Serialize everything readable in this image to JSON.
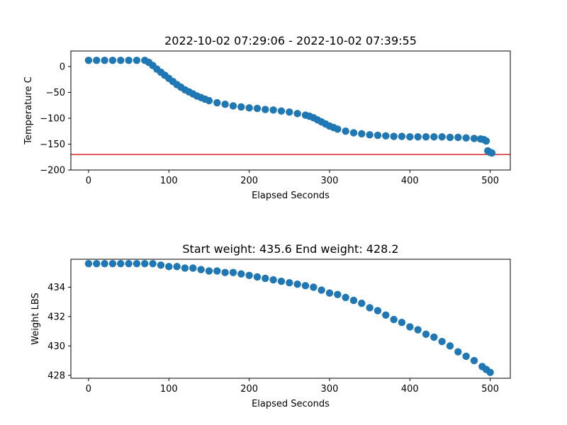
{
  "chart_data": [
    {
      "type": "scatter",
      "title": "2022-10-02 07:29:06 - 2022-10-02 07:39:55",
      "xlabel": "Elapsed Seconds",
      "ylabel": "Temperature C",
      "xlim": [
        -22,
        525
      ],
      "ylim": [
        -200,
        30
      ],
      "xticks": [
        0,
        100,
        200,
        300,
        400,
        500
      ],
      "yticks": [
        0,
        -50,
        -100,
        -150,
        -200
      ],
      "tick_labels_x": [
        "0",
        "100",
        "200",
        "300",
        "400",
        "500"
      ],
      "tick_labels_y": [
        "0",
        "−50",
        "−100",
        "−150",
        "−200"
      ],
      "marker_color": "#1f77b4",
      "reference_line": {
        "y": -170,
        "color": "#d62728"
      },
      "series": [
        {
          "points": [
            [
              0,
              12
            ],
            [
              10,
              12
            ],
            [
              20,
              12
            ],
            [
              30,
              12
            ],
            [
              40,
              12
            ],
            [
              50,
              12
            ],
            [
              60,
              12
            ],
            [
              70,
              12
            ],
            [
              75,
              8
            ],
            [
              80,
              2
            ],
            [
              85,
              -5
            ],
            [
              90,
              -11
            ],
            [
              95,
              -17
            ],
            [
              100,
              -23
            ],
            [
              105,
              -29
            ],
            [
              110,
              -35
            ],
            [
              115,
              -40
            ],
            [
              120,
              -45
            ],
            [
              125,
              -49
            ],
            [
              130,
              -53
            ],
            [
              135,
              -57
            ],
            [
              140,
              -60
            ],
            [
              145,
              -63
            ],
            [
              150,
              -66
            ],
            [
              160,
              -70
            ],
            [
              170,
              -73
            ],
            [
              180,
              -76
            ],
            [
              190,
              -78
            ],
            [
              200,
              -80
            ],
            [
              210,
              -81
            ],
            [
              220,
              -83
            ],
            [
              230,
              -84
            ],
            [
              240,
              -86
            ],
            [
              250,
              -88
            ],
            [
              260,
              -91
            ],
            [
              270,
              -94
            ],
            [
              275,
              -96
            ],
            [
              280,
              -99
            ],
            [
              285,
              -103
            ],
            [
              290,
              -107
            ],
            [
              295,
              -111
            ],
            [
              300,
              -115
            ],
            [
              305,
              -118
            ],
            [
              310,
              -121
            ],
            [
              320,
              -125
            ],
            [
              330,
              -128
            ],
            [
              340,
              -130
            ],
            [
              350,
              -132
            ],
            [
              360,
              -133
            ],
            [
              370,
              -134
            ],
            [
              380,
              -135
            ],
            [
              390,
              -135
            ],
            [
              400,
              -136
            ],
            [
              410,
              -136
            ],
            [
              420,
              -136
            ],
            [
              430,
              -136
            ],
            [
              440,
              -136
            ],
            [
              450,
              -137
            ],
            [
              460,
              -137
            ],
            [
              470,
              -138
            ],
            [
              480,
              -139
            ],
            [
              488,
              -140
            ],
            [
              492,
              -141
            ],
            [
              495,
              -144
            ],
            [
              497,
              -163
            ],
            [
              500,
              -166
            ],
            [
              502,
              -167
            ]
          ]
        }
      ]
    },
    {
      "type": "scatter",
      "title": "Start weight: 435.6 End weight: 428.2",
      "xlabel": "Elapsed Seconds",
      "ylabel": "Weight LBS",
      "xlim": [
        -22,
        525
      ],
      "ylim": [
        427.8,
        435.9
      ],
      "xticks": [
        0,
        100,
        200,
        300,
        400,
        500
      ],
      "yticks": [
        428,
        430,
        432,
        434
      ],
      "tick_labels_x": [
        "0",
        "100",
        "200",
        "300",
        "400",
        "500"
      ],
      "tick_labels_y": [
        "428",
        "430",
        "432",
        "434"
      ],
      "marker_color": "#1f77b4",
      "series": [
        {
          "points": [
            [
              0,
              435.6
            ],
            [
              10,
              435.6
            ],
            [
              20,
              435.6
            ],
            [
              30,
              435.6
            ],
            [
              40,
              435.6
            ],
            [
              50,
              435.6
            ],
            [
              60,
              435.6
            ],
            [
              70,
              435.6
            ],
            [
              80,
              435.6
            ],
            [
              90,
              435.5
            ],
            [
              100,
              435.4
            ],
            [
              110,
              435.4
            ],
            [
              120,
              435.3
            ],
            [
              130,
              435.3
            ],
            [
              140,
              435.2
            ],
            [
              150,
              435.1
            ],
            [
              160,
              435.1
            ],
            [
              170,
              435.0
            ],
            [
              180,
              435.0
            ],
            [
              190,
              434.9
            ],
            [
              200,
              434.8
            ],
            [
              210,
              434.7
            ],
            [
              220,
              434.6
            ],
            [
              230,
              434.5
            ],
            [
              240,
              434.4
            ],
            [
              250,
              434.3
            ],
            [
              260,
              434.2
            ],
            [
              270,
              434.1
            ],
            [
              280,
              434.0
            ],
            [
              290,
              433.8
            ],
            [
              300,
              433.6
            ],
            [
              310,
              433.5
            ],
            [
              320,
              433.3
            ],
            [
              330,
              433.1
            ],
            [
              340,
              432.9
            ],
            [
              350,
              432.6
            ],
            [
              360,
              432.4
            ],
            [
              370,
              432.1
            ],
            [
              380,
              431.8
            ],
            [
              390,
              431.6
            ],
            [
              400,
              431.3
            ],
            [
              410,
              431.1
            ],
            [
              420,
              430.8
            ],
            [
              430,
              430.6
            ],
            [
              440,
              430.3
            ],
            [
              450,
              430.0
            ],
            [
              460,
              429.6
            ],
            [
              470,
              429.3
            ],
            [
              480,
              429.0
            ],
            [
              490,
              428.6
            ],
            [
              495,
              428.4
            ],
            [
              500,
              428.2
            ]
          ]
        }
      ]
    }
  ]
}
